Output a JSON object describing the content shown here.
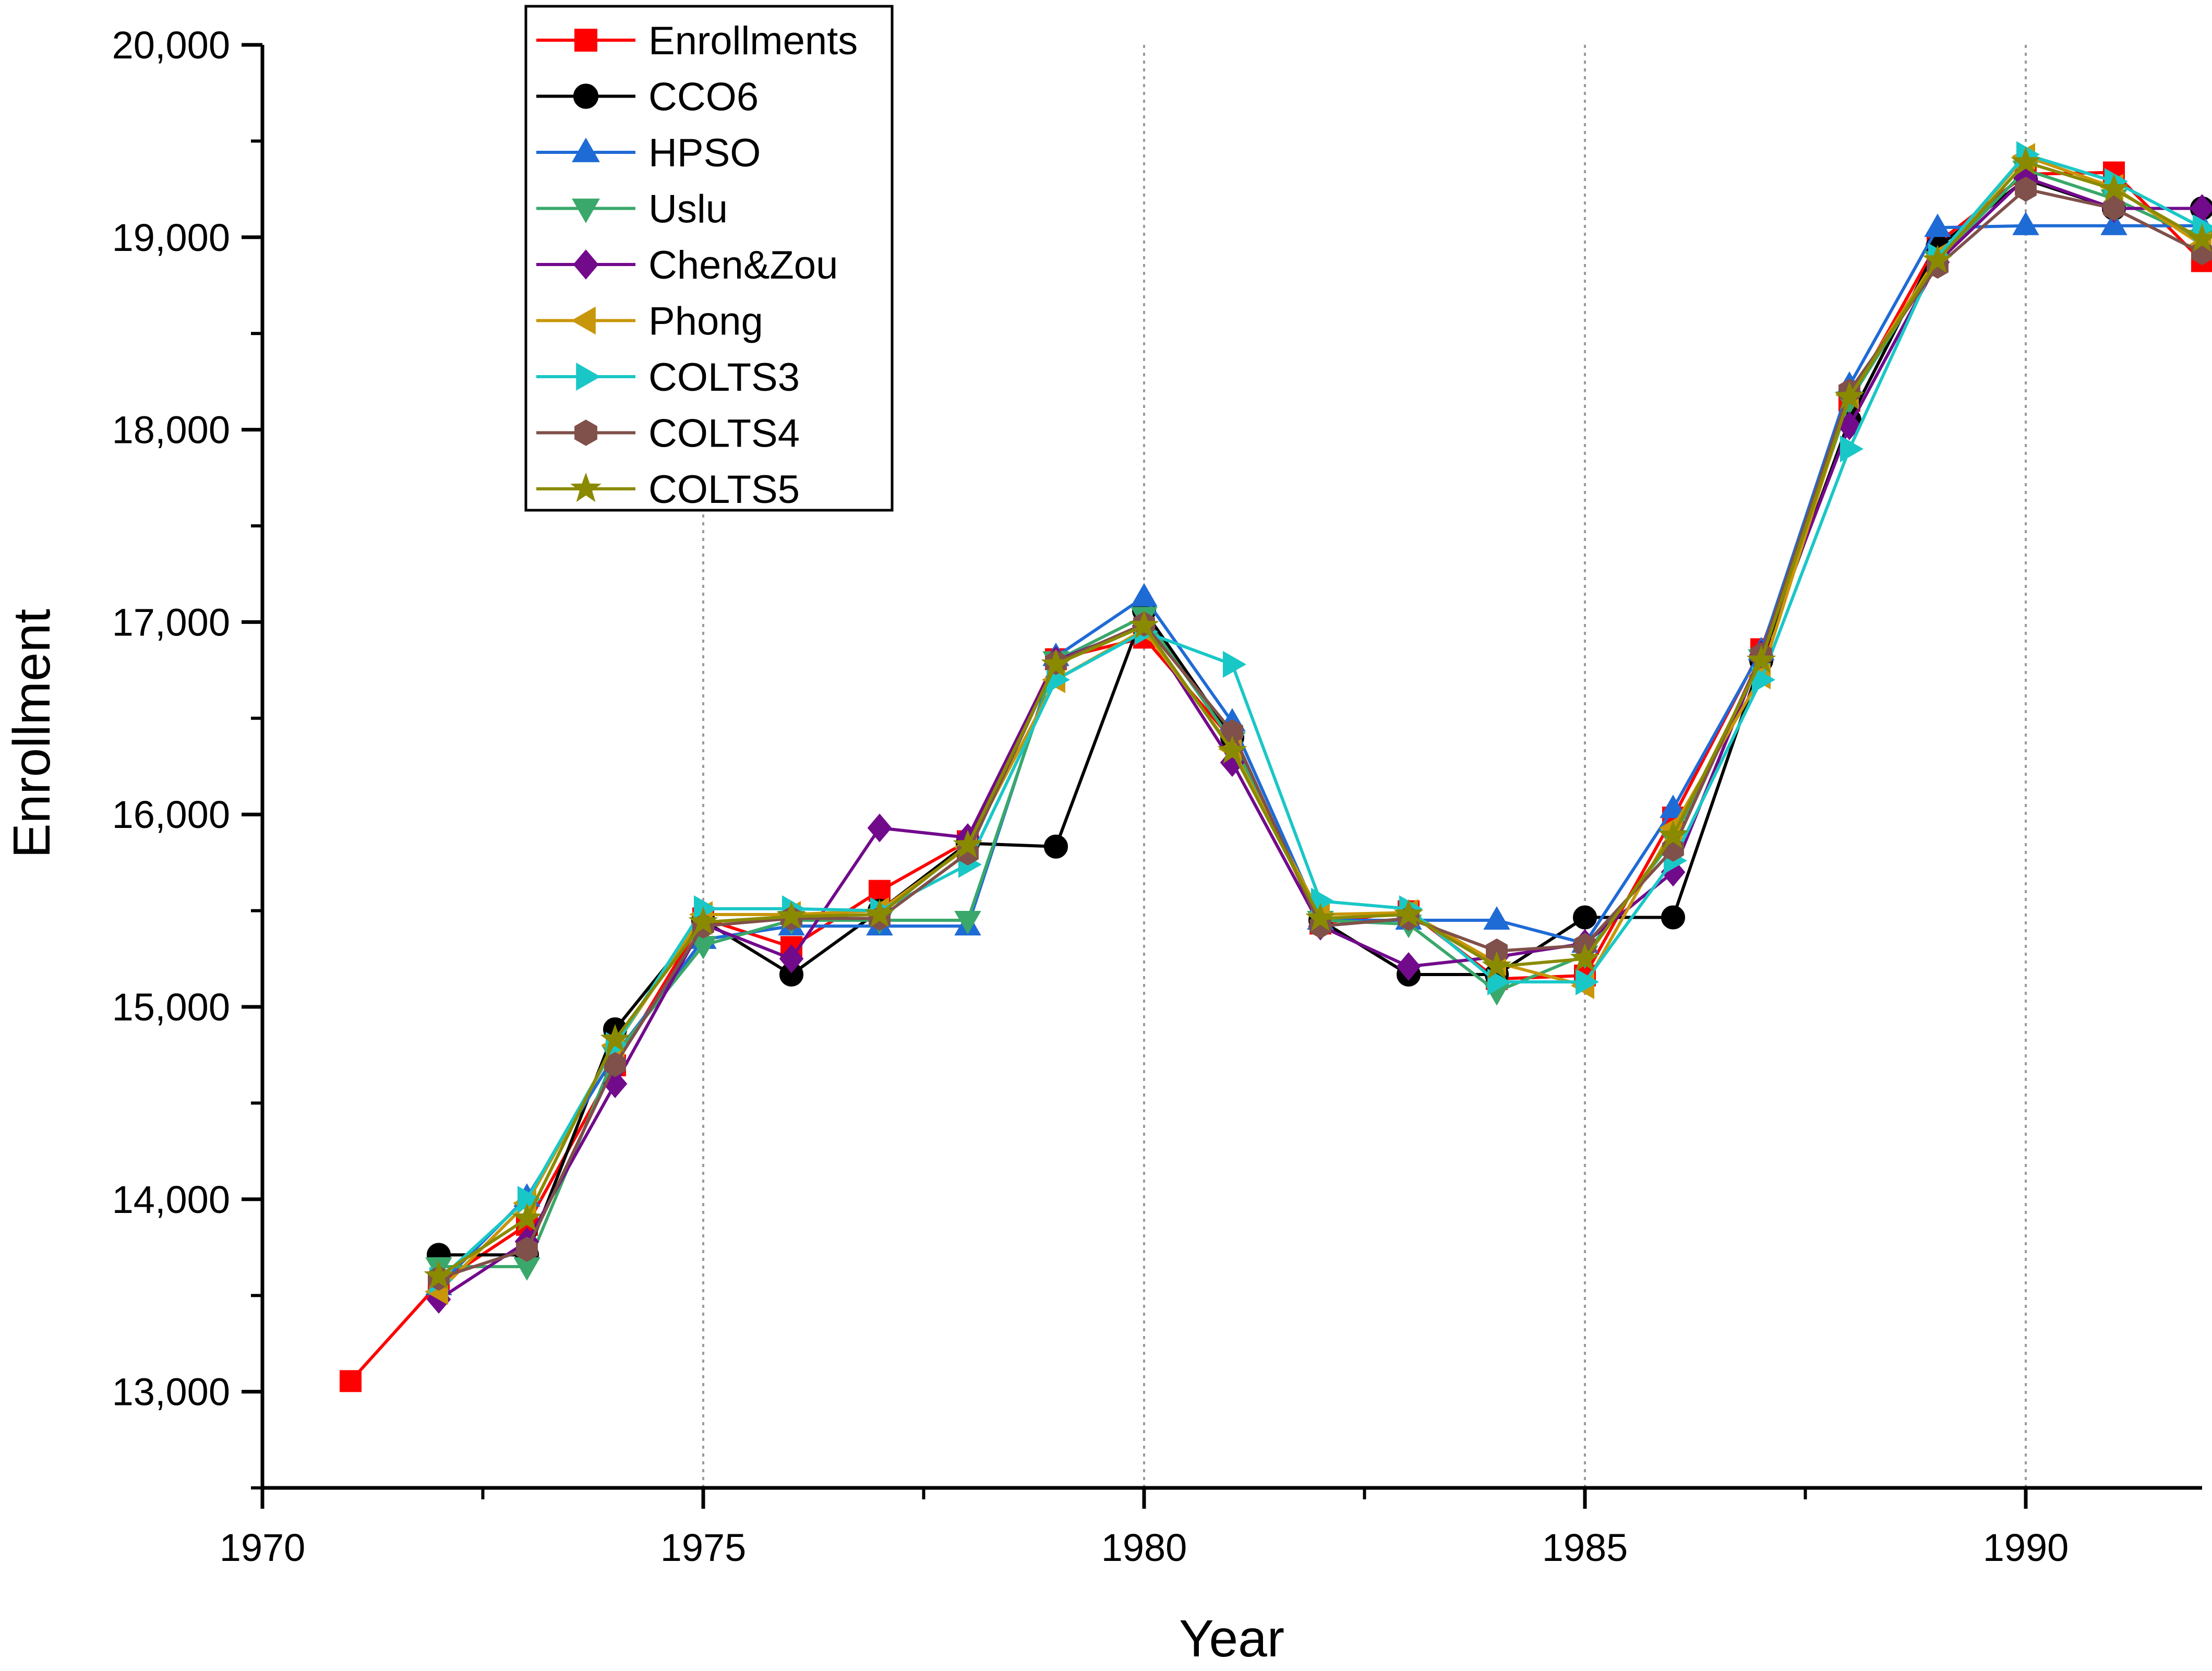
{
  "chart_data": {
    "type": "line",
    "title": "",
    "xlabel": "Year",
    "ylabel": "Enrollment",
    "xlim": [
      1970,
      1992
    ],
    "ylim": [
      12500,
      20000
    ],
    "xticks": [
      1970,
      1975,
      1980,
      1985,
      1990
    ],
    "xtick_labels": [
      "1970",
      "1975",
      "1980",
      "1985",
      "1990"
    ],
    "yticks": [
      13000,
      14000,
      15000,
      16000,
      17000,
      18000,
      19000,
      20000
    ],
    "ytick_labels": [
      "13,000",
      "14,000",
      "15,000",
      "16,000",
      "17,000",
      "18,000",
      "19,000",
      "20,000"
    ],
    "vertical_gridlines": [
      1975,
      1980,
      1985,
      1990
    ],
    "legend_position": "top-left",
    "series": [
      {
        "name": "Enrollments",
        "color": "#ff0000",
        "marker": "square",
        "x": [
          1971,
          1972,
          1973,
          1974,
          1975,
          1976,
          1977,
          1978,
          1979,
          1980,
          1981,
          1982,
          1983,
          1984,
          1985,
          1986,
          1987,
          1988,
          1989,
          1990,
          1991,
          1992
        ],
        "values": [
          13055,
          13563,
          13867,
          14696,
          15460,
          15311,
          15603,
          15861,
          16807,
          16919,
          16388,
          15433,
          15497,
          15145,
          15163,
          15984,
          16859,
          18150,
          18970,
          19328,
          19337,
          18876
        ]
      },
      {
        "name": "CCO6",
        "color": "#000000",
        "marker": "circle",
        "x": [
          1972,
          1973,
          1974,
          1975,
          1976,
          1977,
          1978,
          1979,
          1980,
          1981,
          1982,
          1983,
          1984,
          1985,
          1986,
          1987,
          1988,
          1989,
          1990,
          1991,
          1992
        ],
        "values": [
          13711,
          13711,
          14883,
          15450,
          15168,
          15500,
          15850,
          15833,
          17060,
          16400,
          15450,
          15168,
          15168,
          15465,
          15465,
          16800,
          18050,
          18950,
          19300,
          19150,
          19150
        ]
      },
      {
        "name": "HPSO",
        "color": "#1f6bd6",
        "marker": "triangle-up",
        "x": [
          1972,
          1973,
          1974,
          1975,
          1976,
          1977,
          1978,
          1979,
          1980,
          1981,
          1982,
          1983,
          1984,
          1985,
          1986,
          1987,
          1988,
          1989,
          1990,
          1991,
          1992
        ],
        "values": [
          13550,
          14010,
          14750,
          15350,
          15420,
          15420,
          15420,
          16820,
          17130,
          16480,
          15450,
          15450,
          15450,
          15330,
          16030,
          16850,
          18230,
          19050,
          19060,
          19060,
          19060
        ]
      },
      {
        "name": "Uslu",
        "color": "#3aa86b",
        "marker": "triangle-down",
        "x": [
          1972,
          1973,
          1974,
          1975,
          1976,
          1977,
          1978,
          1979,
          1980,
          1981,
          1982,
          1983,
          1984,
          1985,
          1986,
          1987,
          1988,
          1989,
          1990,
          1991,
          1992
        ],
        "values": [
          13650,
          13650,
          14750,
          15320,
          15450,
          15450,
          15450,
          16800,
          17030,
          16380,
          15450,
          15430,
          15080,
          15270,
          15870,
          16810,
          18150,
          18880,
          19350,
          19200,
          18990
        ]
      },
      {
        "name": "Chen&Zou",
        "color": "#720a8c",
        "marker": "diamond",
        "x": [
          1972,
          1973,
          1974,
          1975,
          1976,
          1977,
          1978,
          1979,
          1980,
          1981,
          1982,
          1983,
          1984,
          1985,
          1986,
          1987,
          1988,
          1989,
          1990,
          1991,
          1992
        ],
        "values": [
          13480,
          13780,
          14600,
          15430,
          15250,
          15930,
          15880,
          16800,
          16980,
          16270,
          15420,
          15210,
          15260,
          15330,
          15700,
          16830,
          18020,
          18870,
          19310,
          19150,
          19150
        ]
      },
      {
        "name": "Phong",
        "color": "#c8960a",
        "marker": "triangle-left",
        "x": [
          1972,
          1973,
          1974,
          1975,
          1976,
          1977,
          1978,
          1979,
          1980,
          1981,
          1982,
          1983,
          1984,
          1985,
          1986,
          1987,
          1988,
          1989,
          1990,
          1991,
          1992
        ],
        "values": [
          13520,
          13980,
          14800,
          15480,
          15480,
          15500,
          15830,
          16700,
          16960,
          16340,
          15480,
          15490,
          15230,
          15110,
          15930,
          16720,
          18180,
          18900,
          19420,
          19260,
          18960
        ]
      },
      {
        "name": "COLTS3",
        "color": "#1ac7c7",
        "marker": "triangle-right",
        "x": [
          1972,
          1973,
          1974,
          1975,
          1976,
          1977,
          1978,
          1979,
          1980,
          1981,
          1982,
          1983,
          1984,
          1985,
          1986,
          1987,
          1988,
          1989,
          1990,
          1991,
          1992
        ],
        "values": [
          13580,
          14000,
          14800,
          15510,
          15510,
          15500,
          15740,
          16700,
          16950,
          16780,
          15550,
          15510,
          15130,
          15130,
          15760,
          16700,
          17900,
          18900,
          19430,
          19290,
          19050
        ]
      },
      {
        "name": "COLTS4",
        "color": "#80504a",
        "marker": "hexagon",
        "x": [
          1972,
          1973,
          1974,
          1975,
          1976,
          1977,
          1978,
          1979,
          1980,
          1981,
          1982,
          1983,
          1984,
          1985,
          1986,
          1987,
          1988,
          1989,
          1990,
          1991,
          1992
        ],
        "values": [
          13590,
          13740,
          14700,
          15420,
          15460,
          15460,
          15800,
          16790,
          16990,
          16430,
          15420,
          15460,
          15290,
          15320,
          15820,
          16830,
          18200,
          18850,
          19250,
          19150,
          18920
        ]
      },
      {
        "name": "COLTS5",
        "color": "#8a8a00",
        "marker": "star",
        "x": [
          1972,
          1973,
          1974,
          1975,
          1976,
          1977,
          1978,
          1979,
          1980,
          1981,
          1982,
          1983,
          1984,
          1985,
          1986,
          1987,
          1988,
          1989,
          1990,
          1991,
          1992
        ],
        "values": [
          13600,
          13900,
          14830,
          15440,
          15470,
          15480,
          15840,
          16780,
          16980,
          16330,
          15460,
          15480,
          15210,
          15250,
          15890,
          16800,
          18170,
          18880,
          19390,
          19250,
          18990
        ]
      }
    ]
  }
}
